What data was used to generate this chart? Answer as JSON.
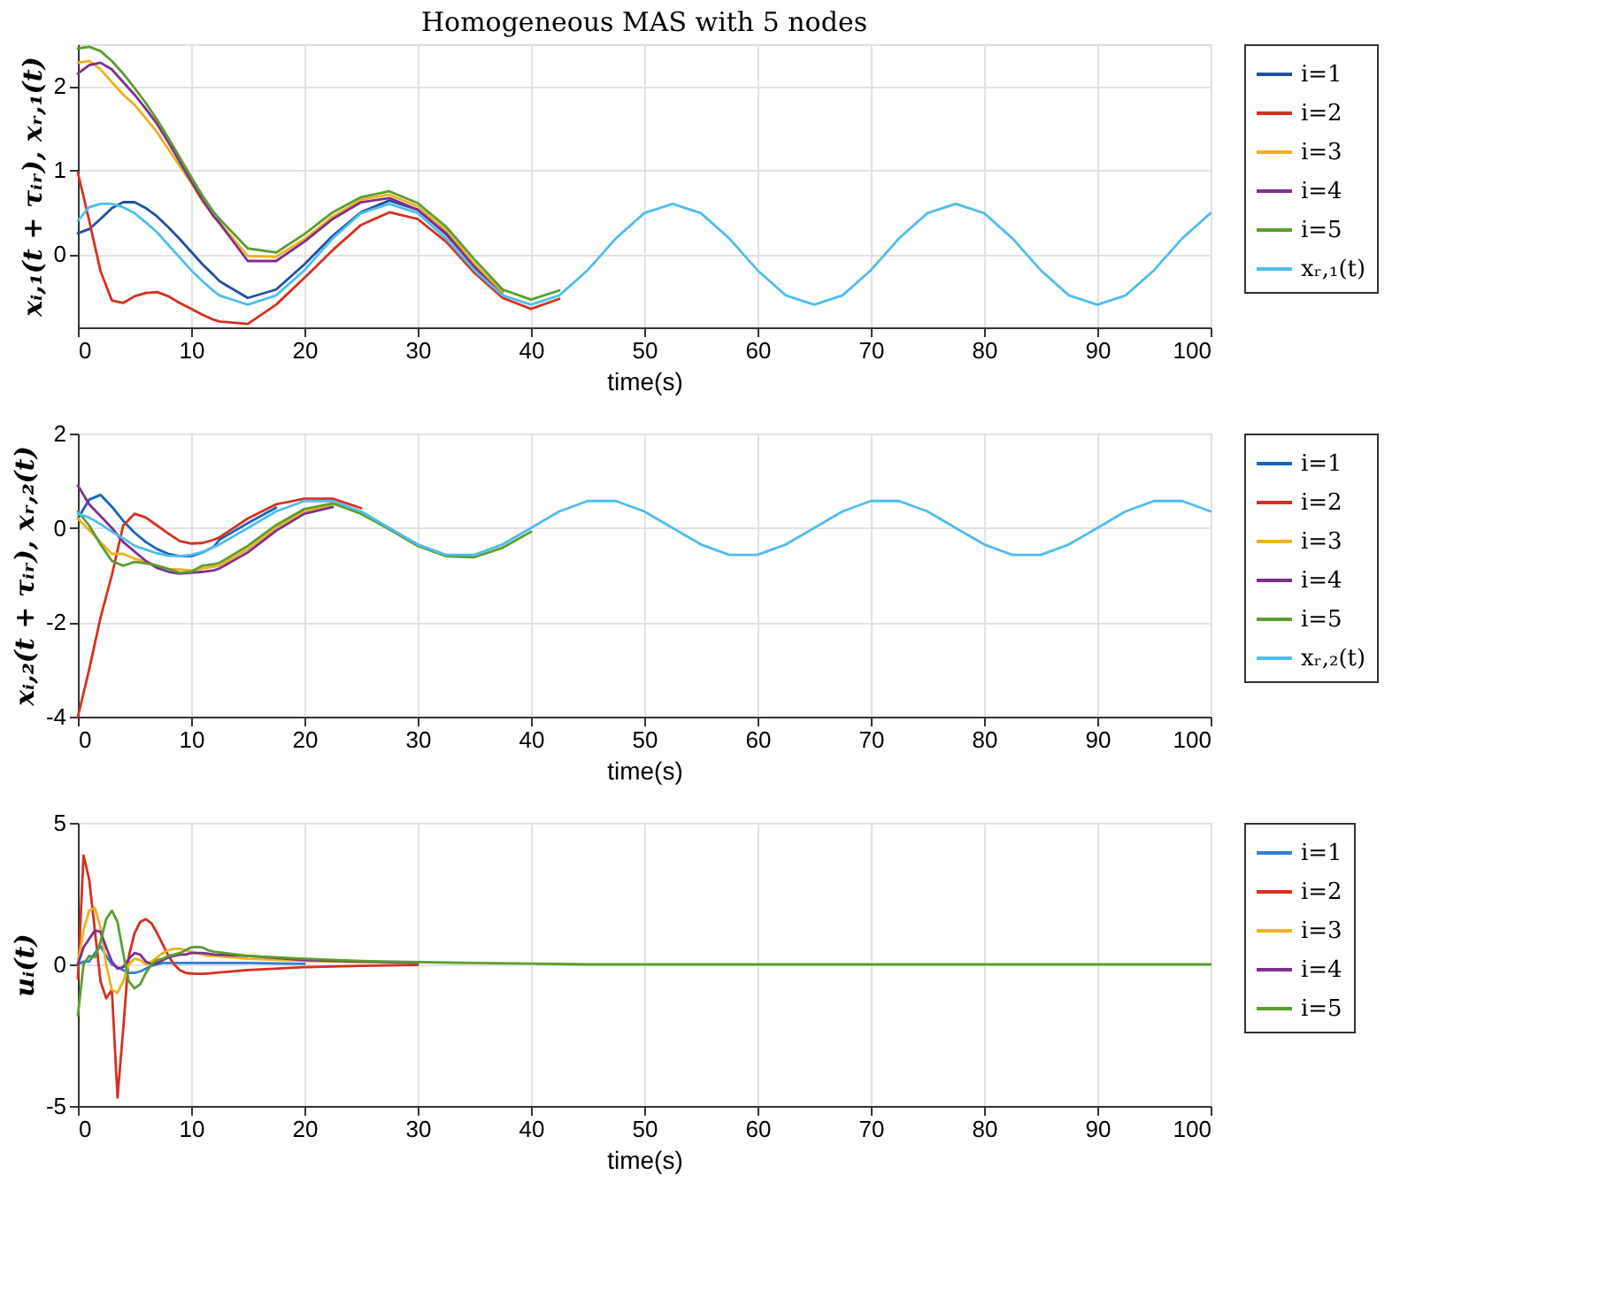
{
  "chart_data": [
    {
      "type": "line",
      "title": "Homogeneous MAS with 5 nodes",
      "xlabel": "time(s)",
      "ylabel": "xᵢ,₁(t + τᵢᵣ), xᵣ,₁(t)",
      "x": [
        0,
        1,
        2,
        3,
        4,
        5,
        6,
        7,
        8,
        9,
        10,
        11,
        12,
        12.5,
        15,
        17.5,
        20,
        22.5,
        25,
        27.5,
        30,
        32.5,
        35,
        37.5,
        40,
        42.5,
        45,
        47.5,
        50,
        52.5,
        55,
        57.5,
        60,
        62.5,
        65,
        67.5,
        70,
        72.5,
        75,
        77.5,
        80,
        82.5,
        85,
        87.5,
        90,
        92.5,
        95,
        97.5,
        100
      ],
      "xlim": [
        0,
        100
      ],
      "ylim": [
        -0.87,
        2.5
      ],
      "xticks": [
        0,
        10,
        20,
        30,
        40,
        50,
        60,
        70,
        80,
        90,
        100
      ],
      "yticks": [
        0,
        1,
        2
      ],
      "grid": true,
      "legend": "right",
      "line_style": "solid",
      "series": [
        {
          "name": "i=1",
          "color": "#1f4fa3",
          "values": [
            0.25,
            0.3,
            0.42,
            0.55,
            0.62,
            0.62,
            0.55,
            0.45,
            0.32,
            0.18,
            0.03,
            -0.12,
            -0.25,
            -0.32,
            -0.52,
            -0.42,
            -0.12,
            0.22,
            0.5,
            0.64,
            0.53,
            0.24,
            -0.14,
            -0.45,
            null,
            null,
            null,
            null,
            null,
            null,
            null,
            null,
            null,
            null,
            null,
            null,
            null,
            null,
            null,
            null,
            null,
            null,
            null,
            null,
            null,
            null,
            null,
            null,
            null
          ]
        },
        {
          "name": "i=2",
          "color": "#d6301f",
          "values": [
            0.97,
            0.4,
            -0.2,
            -0.55,
            -0.58,
            -0.5,
            -0.46,
            -0.45,
            -0.5,
            -0.58,
            -0.65,
            -0.72,
            -0.78,
            -0.8,
            -0.83,
            -0.6,
            -0.28,
            0.05,
            0.35,
            0.5,
            0.42,
            0.15,
            -0.22,
            -0.52,
            -0.65,
            -0.53,
            null,
            null,
            null,
            null,
            null,
            null,
            null,
            null,
            null,
            null,
            null,
            null,
            null,
            null,
            null,
            null,
            null,
            null,
            null,
            null,
            null,
            null,
            null
          ]
        },
        {
          "name": "i=3",
          "color": "#edb120",
          "values": [
            2.28,
            2.3,
            2.2,
            2.05,
            1.9,
            1.78,
            1.62,
            1.45,
            1.25,
            1.05,
            0.85,
            0.63,
            0.45,
            0.38,
            -0.02,
            -0.03,
            0.18,
            0.45,
            0.65,
            0.71,
            0.57,
            0.29,
            -0.11,
            -0.46,
            null,
            null,
            null,
            null,
            null,
            null,
            null,
            null,
            null,
            null,
            null,
            null,
            null,
            null,
            null,
            null,
            null,
            null,
            null,
            null,
            null,
            null,
            null,
            null,
            null
          ]
        },
        {
          "name": "i=4",
          "color": "#7e2f8e",
          "values": [
            2.15,
            2.25,
            2.28,
            2.2,
            2.05,
            1.9,
            1.73,
            1.55,
            1.33,
            1.1,
            0.87,
            0.65,
            0.45,
            0.37,
            -0.08,
            -0.08,
            0.15,
            0.42,
            0.62,
            0.67,
            0.53,
            0.25,
            -0.15,
            -0.49,
            null,
            null,
            null,
            null,
            null,
            null,
            null,
            null,
            null,
            null,
            null,
            null,
            null,
            null,
            null,
            null,
            null,
            null,
            null,
            null,
            null,
            null,
            null,
            null,
            null
          ]
        },
        {
          "name": "i=5",
          "color": "#5a9e2f",
          "values": [
            2.45,
            2.47,
            2.42,
            2.3,
            2.15,
            1.98,
            1.8,
            1.6,
            1.38,
            1.15,
            0.92,
            0.7,
            0.5,
            0.42,
            0.07,
            0.02,
            0.24,
            0.5,
            0.68,
            0.75,
            0.61,
            0.33,
            -0.06,
            -0.42,
            -0.54,
            -0.43,
            null,
            null,
            null,
            null,
            null,
            null,
            null,
            null,
            null,
            null,
            null,
            null,
            null,
            null,
            null,
            null,
            null,
            null,
            null,
            null,
            null,
            null,
            null
          ]
        },
        {
          "name": "xᵣ,₁(t)",
          "color": "#4dbeee",
          "values": [
            0.4,
            0.56,
            0.6,
            0.6,
            0.56,
            0.49,
            0.38,
            0.26,
            0.11,
            -0.04,
            -0.19,
            -0.32,
            -0.44,
            -0.49,
            -0.6,
            -0.49,
            -0.19,
            0.19,
            0.49,
            0.6,
            0.49,
            0.19,
            -0.19,
            -0.49,
            -0.6,
            -0.49,
            -0.19,
            0.19,
            0.49,
            0.6,
            0.49,
            0.19,
            -0.19,
            -0.49,
            -0.6,
            -0.49,
            -0.19,
            0.19,
            0.49,
            0.6,
            0.49,
            0.19,
            -0.19,
            -0.49,
            -0.6,
            -0.49,
            -0.19,
            0.19,
            0.49
          ]
        }
      ]
    },
    {
      "type": "line",
      "xlabel": "time(s)",
      "ylabel": "xᵢ,₂(t + τᵢᵣ), xᵣ,₂(t)",
      "x": [
        0,
        1,
        2,
        3,
        4,
        5,
        6,
        7,
        8,
        9,
        10,
        11,
        12,
        12.5,
        15,
        17.5,
        20,
        22.5,
        25,
        27.5,
        30,
        32.5,
        35,
        37.5,
        40,
        42.5,
        45,
        47.5,
        50,
        52.5,
        55,
        57.5,
        60,
        62.5,
        65,
        67.5,
        70,
        72.5,
        75,
        77.5,
        80,
        82.5,
        85,
        87.5,
        90,
        92.5,
        95,
        97.5,
        100
      ],
      "xlim": [
        0,
        100
      ],
      "ylim": [
        -4,
        2
      ],
      "xticks": [
        0,
        10,
        20,
        30,
        40,
        50,
        60,
        70,
        80,
        90,
        100
      ],
      "yticks": [
        -4,
        -2,
        0,
        2
      ],
      "grid": true,
      "legend": "right",
      "line_style": "solid",
      "series": [
        {
          "name": "i=1",
          "color": "#1565c0",
          "values": [
            0.2,
            0.6,
            0.7,
            0.45,
            0.15,
            -0.1,
            -0.3,
            -0.45,
            -0.55,
            -0.6,
            -0.6,
            -0.52,
            -0.4,
            -0.25,
            0.1,
            0.43,
            null,
            null,
            null,
            null,
            null,
            null,
            null,
            null,
            null,
            null,
            null,
            null,
            null,
            null,
            null,
            null,
            null,
            null,
            null,
            null,
            null,
            null,
            null,
            null,
            null,
            null,
            null,
            null,
            null,
            null,
            null,
            null,
            null
          ]
        },
        {
          "name": "i=2",
          "color": "#d6301f",
          "values": [
            -4,
            -3,
            -1.9,
            -1.0,
            0.05,
            0.3,
            0.22,
            0.05,
            -0.12,
            -0.28,
            -0.33,
            -0.32,
            -0.25,
            -0.2,
            0.2,
            0.5,
            0.62,
            0.62,
            0.42,
            null,
            null,
            null,
            null,
            null,
            null,
            null,
            null,
            null,
            null,
            null,
            null,
            null,
            null,
            null,
            null,
            null,
            null,
            null,
            null,
            null,
            null,
            null,
            null,
            null,
            null,
            null,
            null,
            null,
            null
          ]
        },
        {
          "name": "i=3",
          "color": "#edb120",
          "values": [
            0.2,
            -0.05,
            -0.3,
            -0.55,
            -0.55,
            -0.65,
            -0.72,
            -0.8,
            -0.87,
            -0.88,
            -0.9,
            -0.86,
            -0.82,
            -0.8,
            -0.45,
            0,
            0.35,
            0.48,
            null,
            null,
            null,
            null,
            null,
            null,
            null,
            null,
            null,
            null,
            null,
            null,
            null,
            null,
            null,
            null,
            null,
            null,
            null,
            null,
            null,
            null,
            null,
            null,
            null,
            null,
            null,
            null,
            null,
            null,
            null
          ]
        },
        {
          "name": "i=4",
          "color": "#7e2f8e",
          "values": [
            0.9,
            0.5,
            0.25,
            0,
            -0.3,
            -0.5,
            -0.7,
            -0.85,
            -0.93,
            -0.97,
            -0.95,
            -0.93,
            -0.9,
            -0.86,
            -0.52,
            -0.06,
            0.3,
            0.44,
            null,
            null,
            null,
            null,
            null,
            null,
            null,
            null,
            null,
            null,
            null,
            null,
            null,
            null,
            null,
            null,
            null,
            null,
            null,
            null,
            null,
            null,
            null,
            null,
            null,
            null,
            null,
            null,
            null,
            null,
            null
          ]
        },
        {
          "name": "i=5",
          "color": "#5a9e2f",
          "values": [
            0.35,
            0.05,
            -0.35,
            -0.7,
            -0.8,
            -0.72,
            -0.75,
            -0.8,
            -0.87,
            -0.95,
            -0.93,
            -0.8,
            -0.77,
            -0.74,
            -0.38,
            0.06,
            0.4,
            0.52,
            0.3,
            -0.03,
            -0.38,
            -0.6,
            -0.62,
            -0.42,
            -0.08,
            null,
            null,
            null,
            null,
            null,
            null,
            null,
            null,
            null,
            null,
            null,
            null,
            null,
            null,
            null,
            null,
            null,
            null,
            null,
            null,
            null,
            null,
            null,
            null
          ]
        },
        {
          "name": "xᵣ,₂(t)",
          "color": "#4dbeee",
          "values": [
            0.3,
            0.22,
            0.08,
            -0.08,
            -0.22,
            -0.38,
            -0.46,
            -0.54,
            -0.59,
            -0.6,
            -0.57,
            -0.51,
            -0.41,
            -0.35,
            0,
            0.35,
            0.57,
            0.57,
            0.35,
            0,
            -0.35,
            -0.57,
            -0.57,
            -0.35,
            0,
            0.35,
            0.57,
            0.57,
            0.35,
            0,
            -0.35,
            -0.57,
            -0.57,
            -0.35,
            0,
            0.35,
            0.57,
            0.57,
            0.35,
            0,
            -0.35,
            -0.57,
            -0.57,
            -0.35,
            0,
            0.35,
            0.57,
            0.57,
            0.35
          ]
        }
      ]
    },
    {
      "type": "line",
      "xlabel": "time(s)",
      "ylabel": "uᵢ(t)",
      "x": [
        0,
        0.5,
        1,
        1.5,
        2,
        2.5,
        3,
        3.5,
        4,
        4.5,
        5,
        5.5,
        6,
        6.5,
        7,
        7.5,
        8,
        8.5,
        9,
        9.5,
        10,
        10.5,
        11,
        11.5,
        12,
        15,
        20,
        25,
        30,
        35,
        40,
        45,
        50,
        55,
        60,
        65,
        70,
        75,
        80,
        85,
        90,
        95,
        100
      ],
      "xlim": [
        0,
        100
      ],
      "ylim": [
        -5,
        5
      ],
      "xticks": [
        0,
        10,
        20,
        30,
        40,
        50,
        60,
        70,
        80,
        90,
        100
      ],
      "yticks": [
        -5,
        0,
        5
      ],
      "grid": true,
      "legend": "right",
      "line_style": "solid",
      "series": [
        {
          "name": "i=1",
          "color": "#2f7fd8",
          "values": [
            0,
            0.1,
            0.1,
            0.4,
            0.65,
            0.3,
            0,
            -0.1,
            -0.2,
            -0.3,
            -0.3,
            -0.25,
            -0.15,
            -0.05,
            0,
            0.05,
            0.05,
            0.05,
            0.05,
            0.05,
            0.05,
            0.05,
            0.05,
            0.05,
            0.05,
            0.05,
            0.02,
            null,
            null,
            null,
            null,
            null,
            null,
            null,
            null,
            null,
            null,
            null,
            null,
            null,
            null,
            null,
            null
          ]
        },
        {
          "name": "i=2",
          "color": "#d6301f",
          "values": [
            -0.5,
            3.85,
            3.0,
            1.2,
            -0.6,
            -1.2,
            -0.9,
            -4.7,
            -2.3,
            0.3,
            1.1,
            1.5,
            1.6,
            1.45,
            1.1,
            0.7,
            0.3,
            0,
            -0.2,
            -0.3,
            -0.32,
            -0.33,
            -0.33,
            -0.32,
            -0.3,
            -0.2,
            -0.1,
            -0.05,
            -0.02,
            null,
            null,
            null,
            null,
            null,
            null,
            null,
            null,
            null,
            null,
            null,
            null,
            null,
            null
          ]
        },
        {
          "name": "i=3",
          "color": "#edb120",
          "values": [
            0,
            1.2,
            1.9,
            2.0,
            1.3,
            0,
            -0.9,
            -1.0,
            -0.6,
            0,
            0.2,
            0.15,
            0,
            0.1,
            0.25,
            0.4,
            0.5,
            0.55,
            0.55,
            0.5,
            0.45,
            0.4,
            0.35,
            0.3,
            0.3,
            0.2,
            0.12,
            0.08,
            0.05,
            null,
            null,
            null,
            null,
            null,
            null,
            null,
            null,
            null,
            null,
            null,
            null,
            null,
            null
          ]
        },
        {
          "name": "i=4",
          "color": "#7e2f8e",
          "values": [
            0,
            0.6,
            0.9,
            1.2,
            1.15,
            0.6,
            0.1,
            -0.15,
            -0.1,
            0.2,
            0.4,
            0.35,
            0.1,
            0,
            0.05,
            0.15,
            0.25,
            0.3,
            0.35,
            0.35,
            0.4,
            0.4,
            0.4,
            0.38,
            0.35,
            0.3,
            0.15,
            0.1,
            0.05,
            null,
            null,
            null,
            null,
            null,
            null,
            null,
            null,
            null,
            null,
            null,
            null,
            null,
            null
          ]
        },
        {
          "name": "i=5",
          "color": "#5a9e2f",
          "values": [
            -1.8,
            0,
            0.3,
            0.25,
            0.8,
            1.6,
            1.9,
            1.5,
            0.4,
            -0.6,
            -0.85,
            -0.7,
            -0.3,
            0,
            0.15,
            0.2,
            0.3,
            0.35,
            0.4,
            0.5,
            0.6,
            0.62,
            0.6,
            0.5,
            0.45,
            0.3,
            0.2,
            0.12,
            0.08,
            0.05,
            0.03,
            0,
            0,
            0,
            0,
            0,
            0,
            0,
            0,
            0,
            0,
            0,
            0
          ]
        }
      ]
    }
  ]
}
